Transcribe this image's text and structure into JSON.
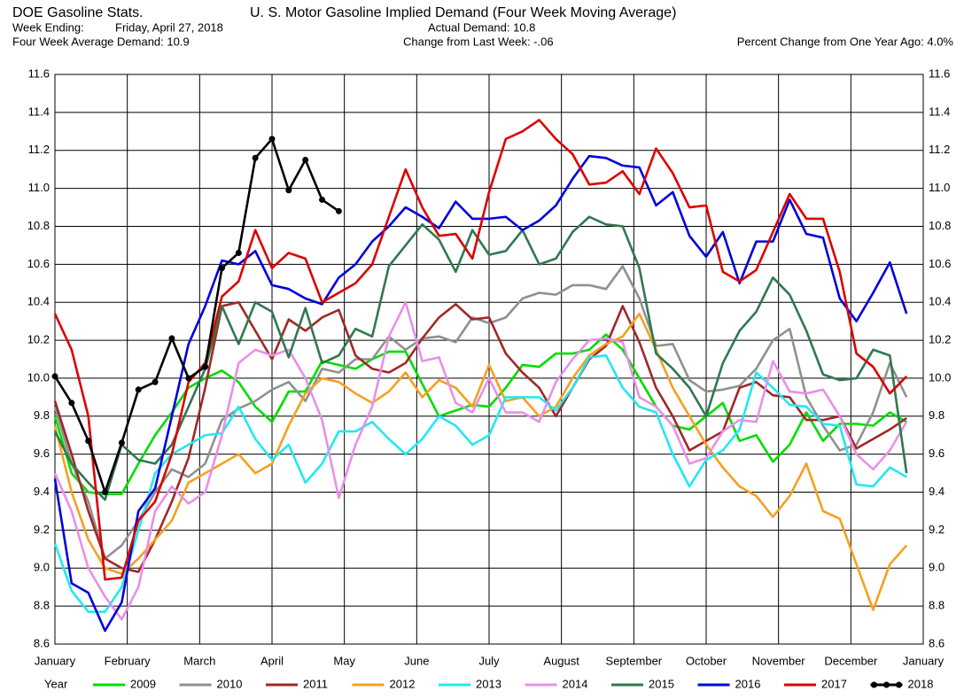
{
  "chart_data": {
    "type": "line",
    "header": {
      "name": "DOE Gasoline Stats.",
      "week_ending_label": "Week Ending:",
      "week_ending": "Friday, April 27, 2018",
      "average_demand": "Four Week Average Demand: 10.9",
      "actual_demand": "Actual Demand: 10.8",
      "change_week": "Change from Last Week: -.06",
      "change_year": "Percent Change from One Year Ago:  4.0%"
    },
    "title": "U. S. Motor Gasoline Implied Demand (Four Week Moving Average)",
    "legend_title": "Year",
    "grid": true,
    "xlim": [
      0,
      52
    ],
    "xticks": [
      {
        "value": 0,
        "label": "January"
      },
      {
        "value": 4.333,
        "label": "February"
      },
      {
        "value": 8.667,
        "label": "March"
      },
      {
        "value": 13,
        "label": "April"
      },
      {
        "value": 17.333,
        "label": "May"
      },
      {
        "value": 21.667,
        "label": "June"
      },
      {
        "value": 26,
        "label": "July"
      },
      {
        "value": 30.333,
        "label": "August"
      },
      {
        "value": 34.667,
        "label": "September"
      },
      {
        "value": 39,
        "label": "October"
      },
      {
        "value": 43.333,
        "label": "November"
      },
      {
        "value": 47.667,
        "label": "December"
      },
      {
        "value": 52,
        "label": "January"
      }
    ],
    "ylim": [
      8.6,
      11.6
    ],
    "yticks": [
      8.6,
      8.8,
      {
        "value": 9.0,
        "label": "9.0"
      },
      9.2,
      9.4,
      9.6,
      9.8,
      {
        "value": 10.0,
        "label": "10.0"
      },
      10.2,
      10.4,
      10.6,
      10.8,
      {
        "value": 11.0,
        "label": "11.0"
      },
      11.2,
      11.4,
      11.6
    ],
    "x": [
      0,
      1,
      2,
      3,
      4,
      5,
      6,
      7,
      8,
      9,
      10,
      11,
      12,
      13,
      14,
      15,
      16,
      17,
      18,
      19,
      20,
      21,
      22,
      23,
      24,
      25,
      26,
      27,
      28,
      29,
      30,
      31,
      32,
      33,
      34,
      35,
      36,
      37,
      38,
      39,
      40,
      41,
      42,
      43,
      44,
      45,
      46,
      47,
      48,
      49,
      50,
      51
    ],
    "series": [
      {
        "name": "2009",
        "color": "#00dd00",
        "values": [
          9.8,
          9.5,
          9.4,
          9.39,
          9.39,
          9.55,
          9.7,
          9.82,
          9.95,
          10.0,
          10.04,
          9.98,
          9.85,
          9.77,
          9.93,
          9.93,
          10.09,
          10.07,
          10.05,
          10.1,
          10.14,
          10.14,
          9.97,
          9.8,
          9.83,
          9.86,
          9.85,
          9.95,
          10.07,
          10.06,
          10.13,
          10.13,
          10.15,
          10.23,
          10.15,
          10.0,
          9.85,
          9.75,
          9.73,
          9.8,
          9.87,
          9.67,
          9.7,
          9.56,
          9.65,
          9.82,
          9.67,
          9.76,
          9.76,
          9.75,
          9.82,
          9.77
        ]
      },
      {
        "name": "2010",
        "color": "#909090",
        "values": [
          9.85,
          9.55,
          9.35,
          9.05,
          9.12,
          9.25,
          9.4,
          9.52,
          9.48,
          9.55,
          9.78,
          9.84,
          9.88,
          9.94,
          9.98,
          9.88,
          10.05,
          10.03,
          10.1,
          10.1,
          10.22,
          10.15,
          10.21,
          10.22,
          10.19,
          10.32,
          10.29,
          10.32,
          10.42,
          10.45,
          10.44,
          10.49,
          10.49,
          10.47,
          10.59,
          10.42,
          10.17,
          10.18,
          9.99,
          9.93,
          9.94,
          9.96,
          10.05,
          10.2,
          10.26,
          9.9,
          9.75,
          9.62,
          9.65,
          9.82,
          10.08,
          9.9
        ]
      },
      {
        "name": "2011",
        "color": "#a02828",
        "values": [
          9.88,
          9.6,
          9.3,
          9.05,
          9.0,
          8.98,
          9.15,
          9.35,
          9.58,
          9.95,
          10.38,
          10.4,
          10.25,
          10.1,
          10.31,
          10.25,
          10.32,
          10.36,
          10.12,
          10.05,
          10.03,
          10.08,
          10.21,
          10.32,
          10.39,
          10.31,
          10.32,
          10.13,
          10.03,
          9.95,
          9.8,
          9.95,
          10.1,
          10.17,
          10.38,
          10.19,
          9.95,
          9.8,
          9.62,
          9.67,
          9.72,
          9.95,
          9.98,
          9.91,
          9.9,
          9.78,
          9.78,
          9.8,
          9.63,
          9.68,
          9.73,
          9.79
        ]
      },
      {
        "name": "2012",
        "color": "#f5a020",
        "values": [
          9.75,
          9.4,
          9.15,
          9.0,
          8.97,
          9.05,
          9.15,
          9.25,
          9.45,
          9.5,
          9.55,
          9.6,
          9.5,
          9.55,
          9.75,
          9.92,
          10.0,
          9.98,
          9.92,
          9.87,
          9.93,
          10.03,
          9.9,
          9.99,
          9.95,
          9.85,
          10.07,
          9.88,
          9.9,
          9.8,
          9.85,
          10.0,
          10.12,
          10.18,
          10.22,
          10.34,
          10.15,
          9.95,
          9.8,
          9.65,
          9.53,
          9.43,
          9.38,
          9.27,
          9.38,
          9.55,
          9.3,
          9.26,
          9.02,
          8.78,
          9.02,
          9.12
        ]
      },
      {
        "name": "2013",
        "color": "#22e8f0",
        "values": [
          9.13,
          8.88,
          8.77,
          8.77,
          8.9,
          9.2,
          9.5,
          9.6,
          9.65,
          9.7,
          9.71,
          9.85,
          9.68,
          9.57,
          9.65,
          9.45,
          9.55,
          9.72,
          9.72,
          9.77,
          9.68,
          9.6,
          9.68,
          9.8,
          9.75,
          9.65,
          9.7,
          9.9,
          9.9,
          9.9,
          9.83,
          9.95,
          10.11,
          10.12,
          9.95,
          9.85,
          9.82,
          9.6,
          9.43,
          9.57,
          9.62,
          9.73,
          10.03,
          9.95,
          9.86,
          9.85,
          9.76,
          9.75,
          9.44,
          9.43,
          9.53,
          9.48
        ]
      },
      {
        "name": "2014",
        "color": "#e890e8",
        "values": [
          9.5,
          9.3,
          9.0,
          8.85,
          8.73,
          8.9,
          9.3,
          9.43,
          9.34,
          9.4,
          9.7,
          10.08,
          10.15,
          10.12,
          10.15,
          10.0,
          9.78,
          9.37,
          9.65,
          9.85,
          10.22,
          10.4,
          10.09,
          10.11,
          9.87,
          9.82,
          10.0,
          9.82,
          9.82,
          9.77,
          9.98,
          10.1,
          10.2,
          10.21,
          10.19,
          9.9,
          9.85,
          9.75,
          9.55,
          9.58,
          9.72,
          9.78,
          9.77,
          10.09,
          9.93,
          9.92,
          9.94,
          9.8,
          9.6,
          9.52,
          9.62,
          9.77
        ]
      },
      {
        "name": "2015",
        "color": "#307850",
        "values": [
          9.72,
          9.55,
          9.45,
          9.36,
          9.65,
          9.57,
          9.55,
          9.65,
          9.85,
          10.05,
          10.38,
          10.18,
          10.4,
          10.35,
          10.11,
          10.37,
          10.08,
          10.12,
          10.26,
          10.22,
          10.59,
          10.7,
          10.81,
          10.73,
          10.56,
          10.78,
          10.65,
          10.67,
          10.78,
          10.6,
          10.63,
          10.77,
          10.85,
          10.81,
          10.8,
          10.58,
          10.13,
          10.05,
          9.95,
          9.8,
          10.08,
          10.25,
          10.35,
          10.53,
          10.44,
          10.25,
          10.02,
          9.99,
          10.0,
          10.15,
          10.12,
          9.5
        ]
      },
      {
        "name": "2016",
        "color": "#0000dd",
        "values": [
          9.47,
          8.92,
          8.87,
          8.67,
          8.82,
          9.3,
          9.42,
          9.8,
          10.18,
          10.38,
          10.62,
          10.6,
          10.67,
          10.49,
          10.47,
          10.42,
          10.39,
          10.53,
          10.6,
          10.72,
          10.8,
          10.9,
          10.85,
          10.79,
          10.93,
          10.84,
          10.84,
          10.85,
          10.78,
          10.83,
          10.91,
          11.05,
          11.17,
          11.16,
          11.12,
          11.11,
          10.91,
          10.98,
          10.75,
          10.64,
          10.77,
          10.5,
          10.72,
          10.72,
          10.94,
          10.76,
          10.74,
          10.42,
          10.3,
          10.45,
          10.61,
          10.34
        ]
      },
      {
        "name": "2017",
        "color": "#dd0000",
        "values": [
          10.34,
          10.15,
          9.8,
          8.94,
          8.95,
          9.25,
          9.35,
          9.6,
          9.98,
          10.08,
          10.43,
          10.51,
          10.78,
          10.58,
          10.66,
          10.63,
          10.4,
          10.45,
          10.5,
          10.6,
          10.85,
          11.1,
          10.9,
          10.75,
          10.76,
          10.63,
          10.98,
          11.26,
          11.3,
          11.36,
          11.26,
          11.18,
          11.02,
          11.03,
          11.09,
          10.97,
          11.21,
          11.08,
          10.9,
          10.91,
          10.56,
          10.51,
          10.57,
          10.77,
          10.97,
          10.84,
          10.84,
          10.56,
          10.13,
          10.06,
          9.92,
          10.01
        ]
      },
      {
        "name": "2018",
        "color": "#000000",
        "markers": true,
        "values": [
          10.01,
          9.87,
          9.67,
          9.4,
          9.66,
          9.94,
          9.98,
          10.21,
          10.0,
          10.06,
          10.58,
          10.66,
          11.16,
          11.26,
          10.99,
          11.15,
          10.94,
          10.88,
          null,
          null,
          null,
          null,
          null,
          null,
          null,
          null,
          null,
          null,
          null,
          null,
          null,
          null,
          null,
          null,
          null,
          null,
          null,
          null,
          null,
          null,
          null,
          null,
          null,
          null,
          null,
          null,
          null,
          null,
          null,
          null,
          null,
          null
        ]
      }
    ]
  }
}
